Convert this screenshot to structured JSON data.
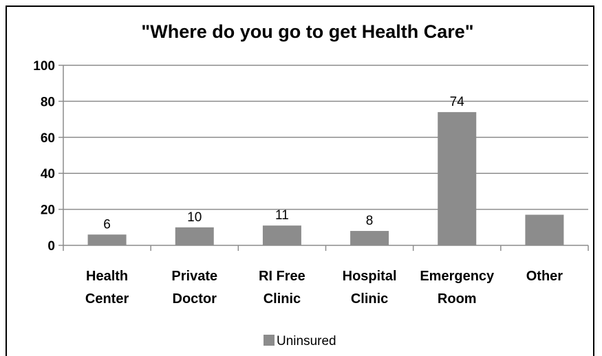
{
  "chart_data": {
    "type": "bar",
    "title": "\"Where do you go to get Health Care\"",
    "categories": [
      [
        "Health",
        "Center"
      ],
      [
        "Private",
        "Doctor"
      ],
      [
        "RI Free",
        "Clinic"
      ],
      [
        "Hospital",
        "Clinic"
      ],
      [
        "Emergency",
        "Room"
      ],
      [
        "Other"
      ]
    ],
    "series": [
      {
        "name": "Uninsured",
        "values": [
          6,
          10,
          11,
          8,
          74,
          17
        ],
        "data_labels": [
          "6",
          "10",
          "11",
          "8",
          "74",
          ""
        ],
        "color": "#8c8c8c"
      }
    ],
    "ylim": [
      0,
      100
    ],
    "yticks": [
      0,
      20,
      40,
      60,
      80,
      100
    ],
    "grid": true,
    "legend_position": "bottom",
    "colors": {
      "gridline": "#8c8c8c",
      "bar": "#8c8c8c",
      "axis": "#8c8c8c"
    }
  }
}
